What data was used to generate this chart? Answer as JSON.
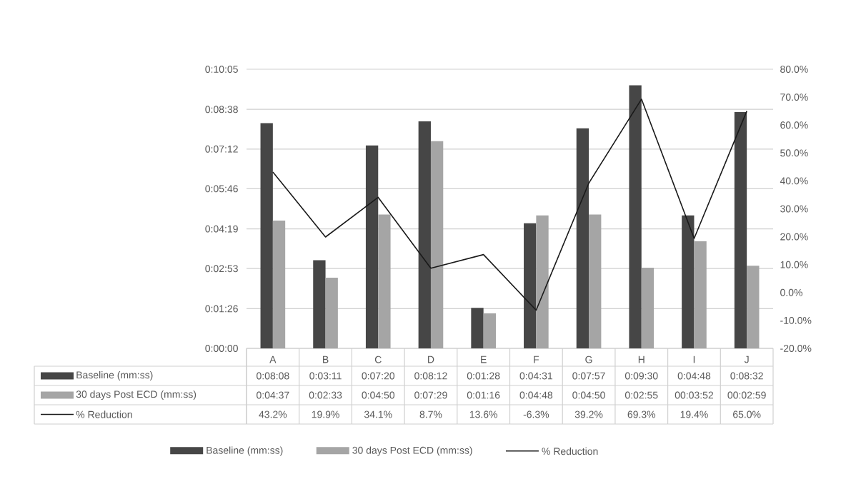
{
  "chart_data": {
    "type": "bar",
    "categories": [
      "A",
      "B",
      "C",
      "D",
      "E",
      "F",
      "G",
      "H",
      "I",
      "J"
    ],
    "series": [
      {
        "name": "Baseline (mm:ss)",
        "color": "#464646",
        "values": [
          488,
          191,
          440,
          492,
          88,
          271,
          477,
          570,
          288,
          512
        ],
        "value_labels": [
          "0:08:08",
          "0:03:11",
          "0:07:20",
          "0:08:12",
          "0:01:28",
          "0:04:31",
          "0:07:57",
          "0:09:30",
          "0:04:48",
          "0:08:32"
        ]
      },
      {
        "name": "30 days Post ECD (mm:ss)",
        "color": "#a5a5a5",
        "values": [
          277,
          153,
          290,
          449,
          76,
          288,
          290,
          175,
          232,
          179
        ],
        "value_labels": [
          "0:04:37",
          "0:02:33",
          "0:04:50",
          "0:07:29",
          "0:01:16",
          "0:04:48",
          "0:04:50",
          "0:02:55",
          "00:03:52",
          "00:02:59"
        ]
      },
      {
        "name": "% Reduction",
        "type": "line",
        "axis": "y2",
        "color": "#1a1a1a",
        "values": [
          43.2,
          19.9,
          34.1,
          8.7,
          13.6,
          -6.3,
          39.2,
          69.3,
          19.4,
          65.0
        ],
        "value_labels": [
          "43.2%",
          "19.9%",
          "34.1%",
          "8.7%",
          "13.6%",
          "-6.3%",
          "39.2%",
          "69.3%",
          "19.4%",
          "65.0%"
        ]
      }
    ],
    "ylim": [
      0,
      605
    ],
    "yticks": [
      {
        "value": 0,
        "label": "0:00:00"
      },
      {
        "value": 86,
        "label": "0:01:26"
      },
      {
        "value": 173,
        "label": "0:02:53"
      },
      {
        "value": 259,
        "label": "0:04:19"
      },
      {
        "value": 346,
        "label": "0:05:46"
      },
      {
        "value": 432,
        "label": "0:07:12"
      },
      {
        "value": 518,
        "label": "0:08:38"
      },
      {
        "value": 605,
        "label": "0:10:05"
      }
    ],
    "y2lim": [
      -20,
      80
    ],
    "y2ticks": [
      {
        "value": -20,
        "label": "-20.0%"
      },
      {
        "value": -10,
        "label": "-10.0%"
      },
      {
        "value": 0,
        "label": "0.0%"
      },
      {
        "value": 10,
        "label": "10.0%"
      },
      {
        "value": 20,
        "label": "20.0%"
      },
      {
        "value": 30,
        "label": "30.0%"
      },
      {
        "value": 40,
        "label": "40.0%"
      },
      {
        "value": 50,
        "label": "50.0%"
      },
      {
        "value": 60,
        "label": "60.0%"
      },
      {
        "value": 70,
        "label": "70.0%"
      },
      {
        "value": 80,
        "label": "80.0%"
      }
    ],
    "grid": "y",
    "legend": "bottom"
  }
}
